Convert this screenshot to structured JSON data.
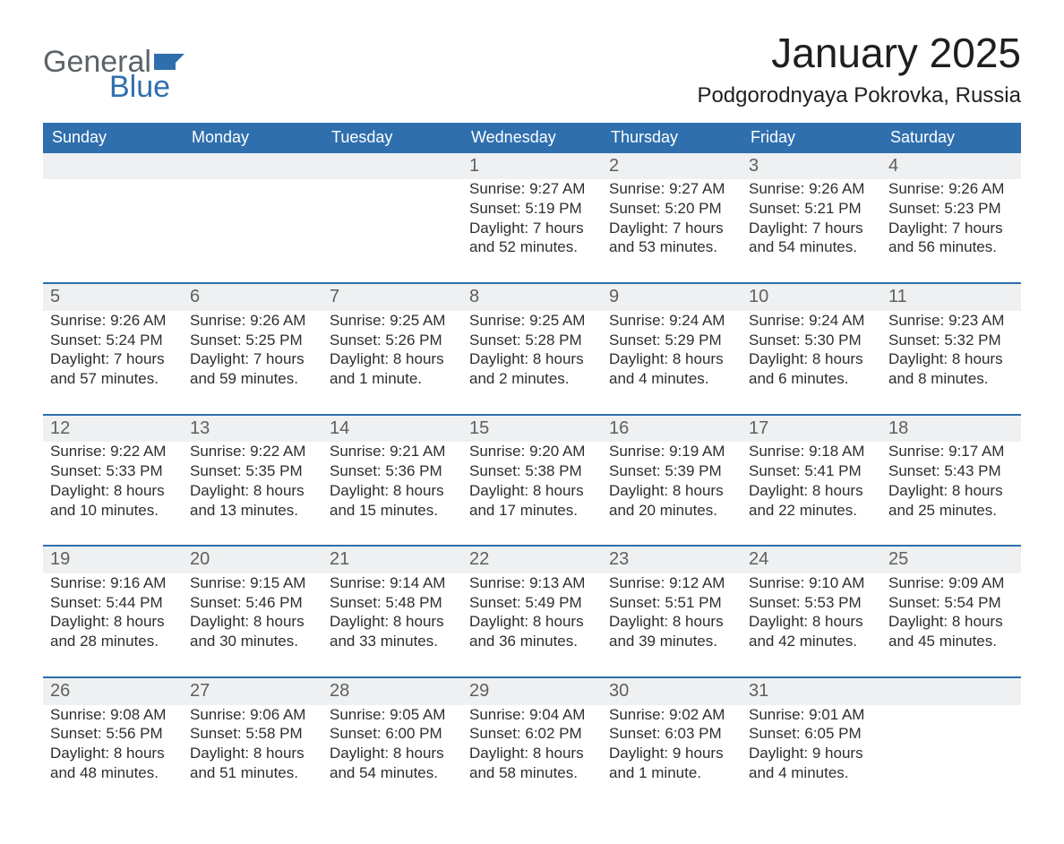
{
  "colors": {
    "accent": "#2f6fae",
    "row_stripe": "#eef0f1",
    "header_bg": "#2f6fae",
    "header_fg": "#ffffff",
    "text": "#2e2e2e",
    "daynum": "#5f5f5f",
    "border": "#2f6fae",
    "logo_gray": "#5d6266",
    "logo_blue": "#2f6fae",
    "background": "#ffffff"
  },
  "typography": {
    "month_title_fontsize": 46,
    "location_fontsize": 24,
    "weekday_fontsize": 18,
    "daynum_fontsize": 20,
    "body_fontsize": 17,
    "logo_fontsize": 34,
    "font_family": "Arial, Helvetica, sans-serif"
  },
  "logo": {
    "line1": "General",
    "line2": "Blue"
  },
  "title": "January 2025",
  "location": "Podgorodnyaya Pokrovka, Russia",
  "weekdays": [
    "Sunday",
    "Monday",
    "Tuesday",
    "Wednesday",
    "Thursday",
    "Friday",
    "Saturday"
  ],
  "labels": {
    "sunrise": "Sunrise: ",
    "sunset": "Sunset: ",
    "daylight": "Daylight: "
  },
  "weeks": [
    [
      {
        "n": "",
        "sunrise": "",
        "sunset": "",
        "daylight1": "",
        "daylight2": ""
      },
      {
        "n": "",
        "sunrise": "",
        "sunset": "",
        "daylight1": "",
        "daylight2": ""
      },
      {
        "n": "",
        "sunrise": "",
        "sunset": "",
        "daylight1": "",
        "daylight2": ""
      },
      {
        "n": "1",
        "sunrise": "9:27 AM",
        "sunset": "5:19 PM",
        "daylight1": "7 hours",
        "daylight2": "and 52 minutes."
      },
      {
        "n": "2",
        "sunrise": "9:27 AM",
        "sunset": "5:20 PM",
        "daylight1": "7 hours",
        "daylight2": "and 53 minutes."
      },
      {
        "n": "3",
        "sunrise": "9:26 AM",
        "sunset": "5:21 PM",
        "daylight1": "7 hours",
        "daylight2": "and 54 minutes."
      },
      {
        "n": "4",
        "sunrise": "9:26 AM",
        "sunset": "5:23 PM",
        "daylight1": "7 hours",
        "daylight2": "and 56 minutes."
      }
    ],
    [
      {
        "n": "5",
        "sunrise": "9:26 AM",
        "sunset": "5:24 PM",
        "daylight1": "7 hours",
        "daylight2": "and 57 minutes."
      },
      {
        "n": "6",
        "sunrise": "9:26 AM",
        "sunset": "5:25 PM",
        "daylight1": "7 hours",
        "daylight2": "and 59 minutes."
      },
      {
        "n": "7",
        "sunrise": "9:25 AM",
        "sunset": "5:26 PM",
        "daylight1": "8 hours",
        "daylight2": "and 1 minute."
      },
      {
        "n": "8",
        "sunrise": "9:25 AM",
        "sunset": "5:28 PM",
        "daylight1": "8 hours",
        "daylight2": "and 2 minutes."
      },
      {
        "n": "9",
        "sunrise": "9:24 AM",
        "sunset": "5:29 PM",
        "daylight1": "8 hours",
        "daylight2": "and 4 minutes."
      },
      {
        "n": "10",
        "sunrise": "9:24 AM",
        "sunset": "5:30 PM",
        "daylight1": "8 hours",
        "daylight2": "and 6 minutes."
      },
      {
        "n": "11",
        "sunrise": "9:23 AM",
        "sunset": "5:32 PM",
        "daylight1": "8 hours",
        "daylight2": "and 8 minutes."
      }
    ],
    [
      {
        "n": "12",
        "sunrise": "9:22 AM",
        "sunset": "5:33 PM",
        "daylight1": "8 hours",
        "daylight2": "and 10 minutes."
      },
      {
        "n": "13",
        "sunrise": "9:22 AM",
        "sunset": "5:35 PM",
        "daylight1": "8 hours",
        "daylight2": "and 13 minutes."
      },
      {
        "n": "14",
        "sunrise": "9:21 AM",
        "sunset": "5:36 PM",
        "daylight1": "8 hours",
        "daylight2": "and 15 minutes."
      },
      {
        "n": "15",
        "sunrise": "9:20 AM",
        "sunset": "5:38 PM",
        "daylight1": "8 hours",
        "daylight2": "and 17 minutes."
      },
      {
        "n": "16",
        "sunrise": "9:19 AM",
        "sunset": "5:39 PM",
        "daylight1": "8 hours",
        "daylight2": "and 20 minutes."
      },
      {
        "n": "17",
        "sunrise": "9:18 AM",
        "sunset": "5:41 PM",
        "daylight1": "8 hours",
        "daylight2": "and 22 minutes."
      },
      {
        "n": "18",
        "sunrise": "9:17 AM",
        "sunset": "5:43 PM",
        "daylight1": "8 hours",
        "daylight2": "and 25 minutes."
      }
    ],
    [
      {
        "n": "19",
        "sunrise": "9:16 AM",
        "sunset": "5:44 PM",
        "daylight1": "8 hours",
        "daylight2": "and 28 minutes."
      },
      {
        "n": "20",
        "sunrise": "9:15 AM",
        "sunset": "5:46 PM",
        "daylight1": "8 hours",
        "daylight2": "and 30 minutes."
      },
      {
        "n": "21",
        "sunrise": "9:14 AM",
        "sunset": "5:48 PM",
        "daylight1": "8 hours",
        "daylight2": "and 33 minutes."
      },
      {
        "n": "22",
        "sunrise": "9:13 AM",
        "sunset": "5:49 PM",
        "daylight1": "8 hours",
        "daylight2": "and 36 minutes."
      },
      {
        "n": "23",
        "sunrise": "9:12 AM",
        "sunset": "5:51 PM",
        "daylight1": "8 hours",
        "daylight2": "and 39 minutes."
      },
      {
        "n": "24",
        "sunrise": "9:10 AM",
        "sunset": "5:53 PM",
        "daylight1": "8 hours",
        "daylight2": "and 42 minutes."
      },
      {
        "n": "25",
        "sunrise": "9:09 AM",
        "sunset": "5:54 PM",
        "daylight1": "8 hours",
        "daylight2": "and 45 minutes."
      }
    ],
    [
      {
        "n": "26",
        "sunrise": "9:08 AM",
        "sunset": "5:56 PM",
        "daylight1": "8 hours",
        "daylight2": "and 48 minutes."
      },
      {
        "n": "27",
        "sunrise": "9:06 AM",
        "sunset": "5:58 PM",
        "daylight1": "8 hours",
        "daylight2": "and 51 minutes."
      },
      {
        "n": "28",
        "sunrise": "9:05 AM",
        "sunset": "6:00 PM",
        "daylight1": "8 hours",
        "daylight2": "and 54 minutes."
      },
      {
        "n": "29",
        "sunrise": "9:04 AM",
        "sunset": "6:02 PM",
        "daylight1": "8 hours",
        "daylight2": "and 58 minutes."
      },
      {
        "n": "30",
        "sunrise": "9:02 AM",
        "sunset": "6:03 PM",
        "daylight1": "9 hours",
        "daylight2": "and 1 minute."
      },
      {
        "n": "31",
        "sunrise": "9:01 AM",
        "sunset": "6:05 PM",
        "daylight1": "9 hours",
        "daylight2": "and 4 minutes."
      },
      {
        "n": "",
        "sunrise": "",
        "sunset": "",
        "daylight1": "",
        "daylight2": ""
      }
    ]
  ]
}
